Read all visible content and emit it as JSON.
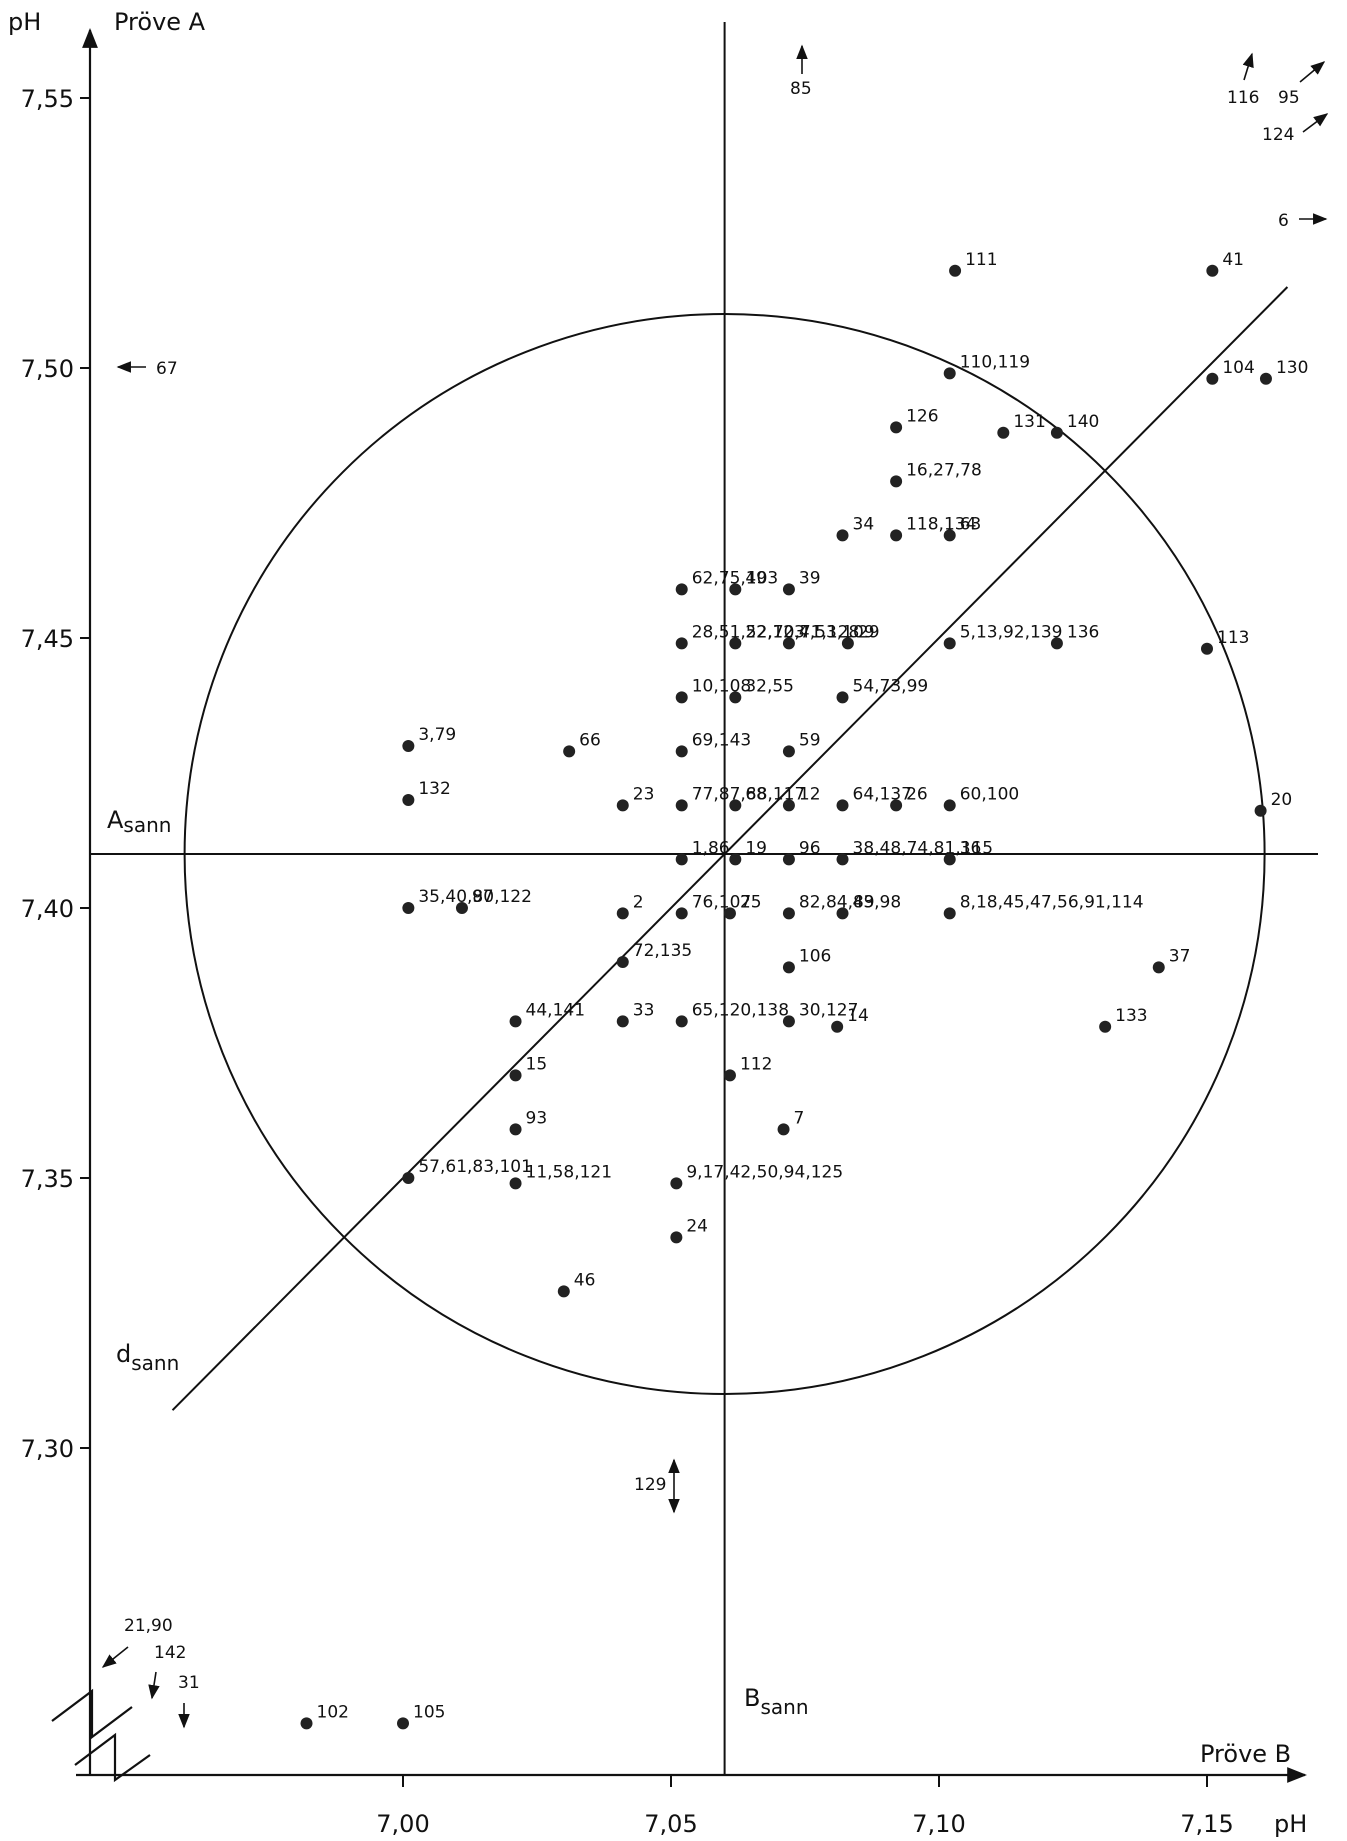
{
  "chart_data": {
    "type": "scatter",
    "y_axis_title": "pH",
    "y_axis_name": "Pröve A",
    "x_axis_name": "Pröve B",
    "x_axis_unit": "pH",
    "x_ticks": [
      {
        "value": 7.0,
        "label": "7,00"
      },
      {
        "value": 7.05,
        "label": "7,05"
      },
      {
        "value": 7.1,
        "label": "7,10"
      },
      {
        "value": 7.15,
        "label": "7,15"
      }
    ],
    "y_ticks": [
      {
        "value": 7.3,
        "label": "7,30"
      },
      {
        "value": 7.35,
        "label": "7,35"
      },
      {
        "value": 7.4,
        "label": "7,40"
      },
      {
        "value": 7.45,
        "label": "7,45"
      },
      {
        "value": 7.5,
        "label": "7,50"
      },
      {
        "value": 7.55,
        "label": "7,55"
      }
    ],
    "true_A": 7.41,
    "true_B": 7.06,
    "true_A_label": "A",
    "true_A_sub": "sann",
    "true_B_label": "B",
    "true_B_sub": "sann",
    "diag_label": "d",
    "diag_sub": "sann",
    "circle_radius_pH": 0.1,
    "points": [
      {
        "label": "111",
        "x": 7.103,
        "y": 7.518
      },
      {
        "label": "41",
        "x": 7.151,
        "y": 7.518
      },
      {
        "label": "110,119",
        "x": 7.102,
        "y": 7.499
      },
      {
        "label": "104",
        "x": 7.151,
        "y": 7.498
      },
      {
        "label": "130",
        "x": 7.161,
        "y": 7.498
      },
      {
        "label": "126",
        "x": 7.092,
        "y": 7.489
      },
      {
        "label": "131",
        "x": 7.112,
        "y": 7.488
      },
      {
        "label": "140",
        "x": 7.122,
        "y": 7.488
      },
      {
        "label": "16,27,78",
        "x": 7.092,
        "y": 7.479
      },
      {
        "label": "34",
        "x": 7.082,
        "y": 7.469
      },
      {
        "label": "118,134",
        "x": 7.092,
        "y": 7.469
      },
      {
        "label": "63",
        "x": 7.102,
        "y": 7.469
      },
      {
        "label": "62,75,103",
        "x": 7.052,
        "y": 7.459
      },
      {
        "label": "49",
        "x": 7.062,
        "y": 7.459
      },
      {
        "label": "39",
        "x": 7.072,
        "y": 7.459
      },
      {
        "label": "28,51,52,70,71,128",
        "x": 7.052,
        "y": 7.449
      },
      {
        "label": "22,123",
        "x": 7.062,
        "y": 7.449
      },
      {
        "label": "4,53,109",
        "x": 7.072,
        "y": 7.449
      },
      {
        "label": "29",
        "x": 7.083,
        "y": 7.449
      },
      {
        "label": "5,13,92,139",
        "x": 7.102,
        "y": 7.449
      },
      {
        "label": "136",
        "x": 7.122,
        "y": 7.449
      },
      {
        "label": "113",
        "x": 7.15,
        "y": 7.448
      },
      {
        "label": "10,108",
        "x": 7.052,
        "y": 7.439
      },
      {
        "label": "32,55",
        "x": 7.062,
        "y": 7.439
      },
      {
        "label": "54,73,99",
        "x": 7.082,
        "y": 7.439
      },
      {
        "label": "3,79",
        "x": 7.001,
        "y": 7.43
      },
      {
        "label": "66",
        "x": 7.031,
        "y": 7.429
      },
      {
        "label": "69,143",
        "x": 7.052,
        "y": 7.429
      },
      {
        "label": "59",
        "x": 7.072,
        "y": 7.429
      },
      {
        "label": "132",
        "x": 7.001,
        "y": 7.42
      },
      {
        "label": "23",
        "x": 7.041,
        "y": 7.419
      },
      {
        "label": "77,87,88,117",
        "x": 7.052,
        "y": 7.419
      },
      {
        "label": "68",
        "x": 7.062,
        "y": 7.419
      },
      {
        "label": "12",
        "x": 7.072,
        "y": 7.419
      },
      {
        "label": "64,137",
        "x": 7.082,
        "y": 7.419
      },
      {
        "label": "26",
        "x": 7.092,
        "y": 7.419
      },
      {
        "label": "60,100",
        "x": 7.102,
        "y": 7.419
      },
      {
        "label": "20",
        "x": 7.16,
        "y": 7.418
      },
      {
        "label": "1,86",
        "x": 7.052,
        "y": 7.409
      },
      {
        "label": "19",
        "x": 7.062,
        "y": 7.409
      },
      {
        "label": "96",
        "x": 7.072,
        "y": 7.409
      },
      {
        "label": "38,48,74,81,115",
        "x": 7.082,
        "y": 7.409
      },
      {
        "label": "36",
        "x": 7.102,
        "y": 7.409
      },
      {
        "label": "35,40,80,122",
        "x": 7.001,
        "y": 7.4
      },
      {
        "label": "97",
        "x": 7.011,
        "y": 7.4
      },
      {
        "label": "2",
        "x": 7.041,
        "y": 7.399
      },
      {
        "label": "76,107",
        "x": 7.052,
        "y": 7.399
      },
      {
        "label": "25",
        "x": 7.061,
        "y": 7.399
      },
      {
        "label": "82,84,89",
        "x": 7.072,
        "y": 7.399
      },
      {
        "label": "43,98",
        "x": 7.082,
        "y": 7.399
      },
      {
        "label": "8,18,45,47,56,91,114",
        "x": 7.102,
        "y": 7.399
      },
      {
        "label": "72,135",
        "x": 7.041,
        "y": 7.39
      },
      {
        "label": "106",
        "x": 7.072,
        "y": 7.389
      },
      {
        "label": "37",
        "x": 7.141,
        "y": 7.389
      },
      {
        "label": "44,141",
        "x": 7.021,
        "y": 7.379
      },
      {
        "label": "33",
        "x": 7.041,
        "y": 7.379
      },
      {
        "label": "65,120,138",
        "x": 7.052,
        "y": 7.379
      },
      {
        "label": "30,127",
        "x": 7.072,
        "y": 7.379
      },
      {
        "label": "14",
        "x": 7.081,
        "y": 7.378
      },
      {
        "label": "133",
        "x": 7.131,
        "y": 7.378
      },
      {
        "label": "15",
        "x": 7.021,
        "y": 7.369
      },
      {
        "label": "112",
        "x": 7.061,
        "y": 7.369
      },
      {
        "label": "93",
        "x": 7.021,
        "y": 7.359
      },
      {
        "label": "7",
        "x": 7.071,
        "y": 7.359
      },
      {
        "label": "57,61,83,101",
        "x": 7.001,
        "y": 7.35
      },
      {
        "label": "11,58,121",
        "x": 7.021,
        "y": 7.349
      },
      {
        "label": "9,17,42,50,94,125",
        "x": 7.051,
        "y": 7.349
      },
      {
        "label": "24",
        "x": 7.051,
        "y": 7.339
      },
      {
        "label": "46",
        "x": 7.03,
        "y": 7.329
      },
      {
        "label": "102",
        "x": 6.982,
        "y": 7.249
      },
      {
        "label": "105",
        "x": 7.0,
        "y": 7.249
      }
    ],
    "off_scale": [
      {
        "label": "85",
        "direction": "up"
      },
      {
        "label": "116",
        "direction": "up"
      },
      {
        "label": "95",
        "direction": "up-right"
      },
      {
        "label": "124",
        "direction": "up-right"
      },
      {
        "label": "6",
        "direction": "right"
      },
      {
        "label": "67",
        "direction": "left"
      },
      {
        "label": "129",
        "direction": "up-down"
      },
      {
        "label": "21,90",
        "direction": "down-left"
      },
      {
        "label": "142",
        "direction": "down"
      },
      {
        "label": "31",
        "direction": "down"
      }
    ]
  }
}
